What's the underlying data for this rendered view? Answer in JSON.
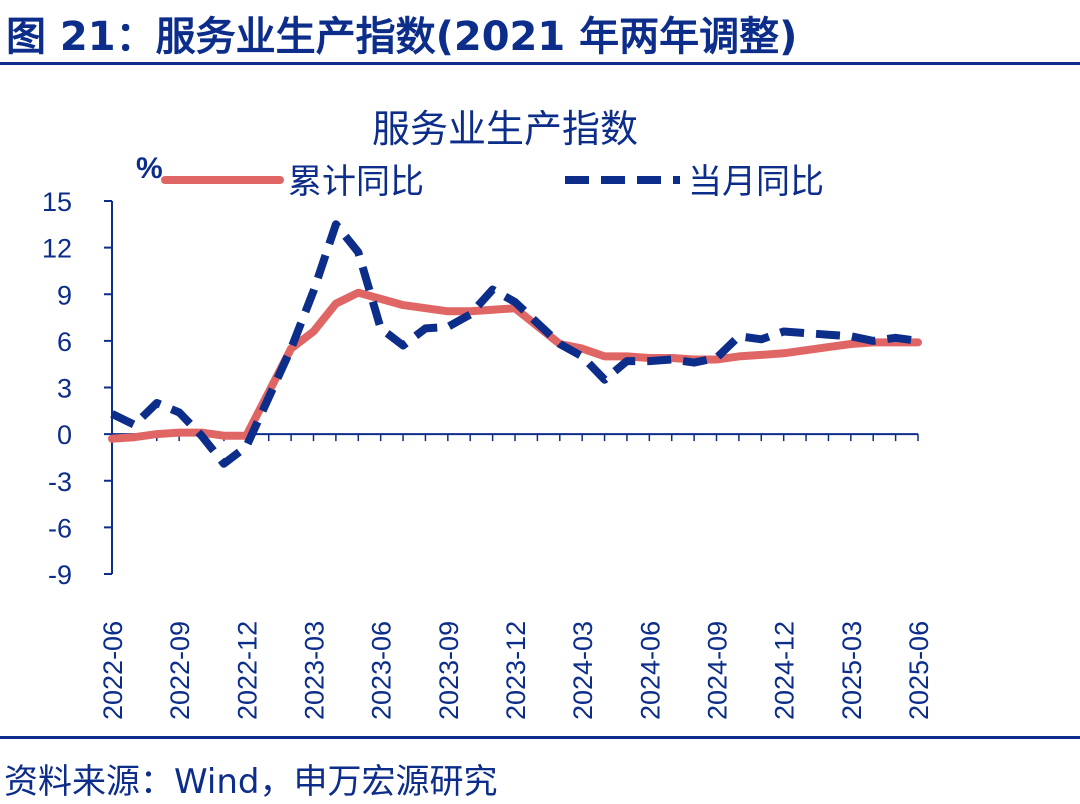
{
  "figure": {
    "title": "图 21：服务业生产指数(2021 年两年调整)",
    "source": "资料来源：Wind，申万宏源研究"
  },
  "colors": {
    "accent": "#0c2d8a",
    "cumulative": "#e06666",
    "monthly": "#0c2d8a"
  },
  "chart_data": {
    "type": "line",
    "title": "服务业生产指数",
    "unit_label": "%",
    "ylim": [
      -9,
      15
    ],
    "yticks": [
      "15",
      "12",
      "9",
      "6",
      "3",
      "0",
      "-3",
      "-6",
      "-9"
    ],
    "x_tick_labels": [
      "2022-06",
      "2022-09",
      "2022-12",
      "2023-03",
      "2023-06",
      "2023-09",
      "2023-12",
      "2024-03",
      "2024-06",
      "2024-09",
      "2024-12",
      "2025-03",
      "2025-06"
    ],
    "x": [
      "2022-06",
      "2022-07",
      "2022-08",
      "2022-09",
      "2022-10",
      "2022-11",
      "2022-12",
      "2023-01",
      "2023-02",
      "2023-03",
      "2023-04",
      "2023-05",
      "2023-06",
      "2023-07",
      "2023-08",
      "2023-09",
      "2023-10",
      "2023-11",
      "2023-12",
      "2024-01",
      "2024-02",
      "2024-03",
      "2024-04",
      "2024-05",
      "2024-06",
      "2024-07",
      "2024-08",
      "2024-09",
      "2024-10",
      "2024-11",
      "2024-12",
      "2025-01",
      "2025-02",
      "2025-03",
      "2025-04",
      "2025-05",
      "2025-06"
    ],
    "series": [
      {
        "name": "累计同比",
        "style": "solid",
        "values": [
          -0.3,
          -0.2,
          0.0,
          0.1,
          0.1,
          -0.1,
          -0.1,
          null,
          5.5,
          6.6,
          8.4,
          9.1,
          8.7,
          8.3,
          8.1,
          7.9,
          7.9,
          8.0,
          8.1,
          null,
          5.8,
          5.5,
          5.0,
          5.0,
          4.9,
          4.9,
          4.8,
          4.8,
          5.0,
          5.1,
          5.2,
          null,
          5.6,
          5.8,
          5.9,
          5.9,
          5.9
        ]
      },
      {
        "name": "当月同比",
        "style": "dashed",
        "values": [
          1.3,
          0.6,
          2.0,
          1.4,
          -0.1,
          -1.9,
          -0.8,
          null,
          5.5,
          9.2,
          13.5,
          11.7,
          6.8,
          5.7,
          6.8,
          6.9,
          7.7,
          9.3,
          8.5,
          null,
          5.8,
          5.0,
          3.5,
          4.7,
          4.7,
          4.8,
          4.6,
          4.9,
          6.3,
          6.1,
          6.6,
          null,
          6.4,
          6.3,
          6.0,
          6.2,
          6.0
        ]
      }
    ]
  }
}
